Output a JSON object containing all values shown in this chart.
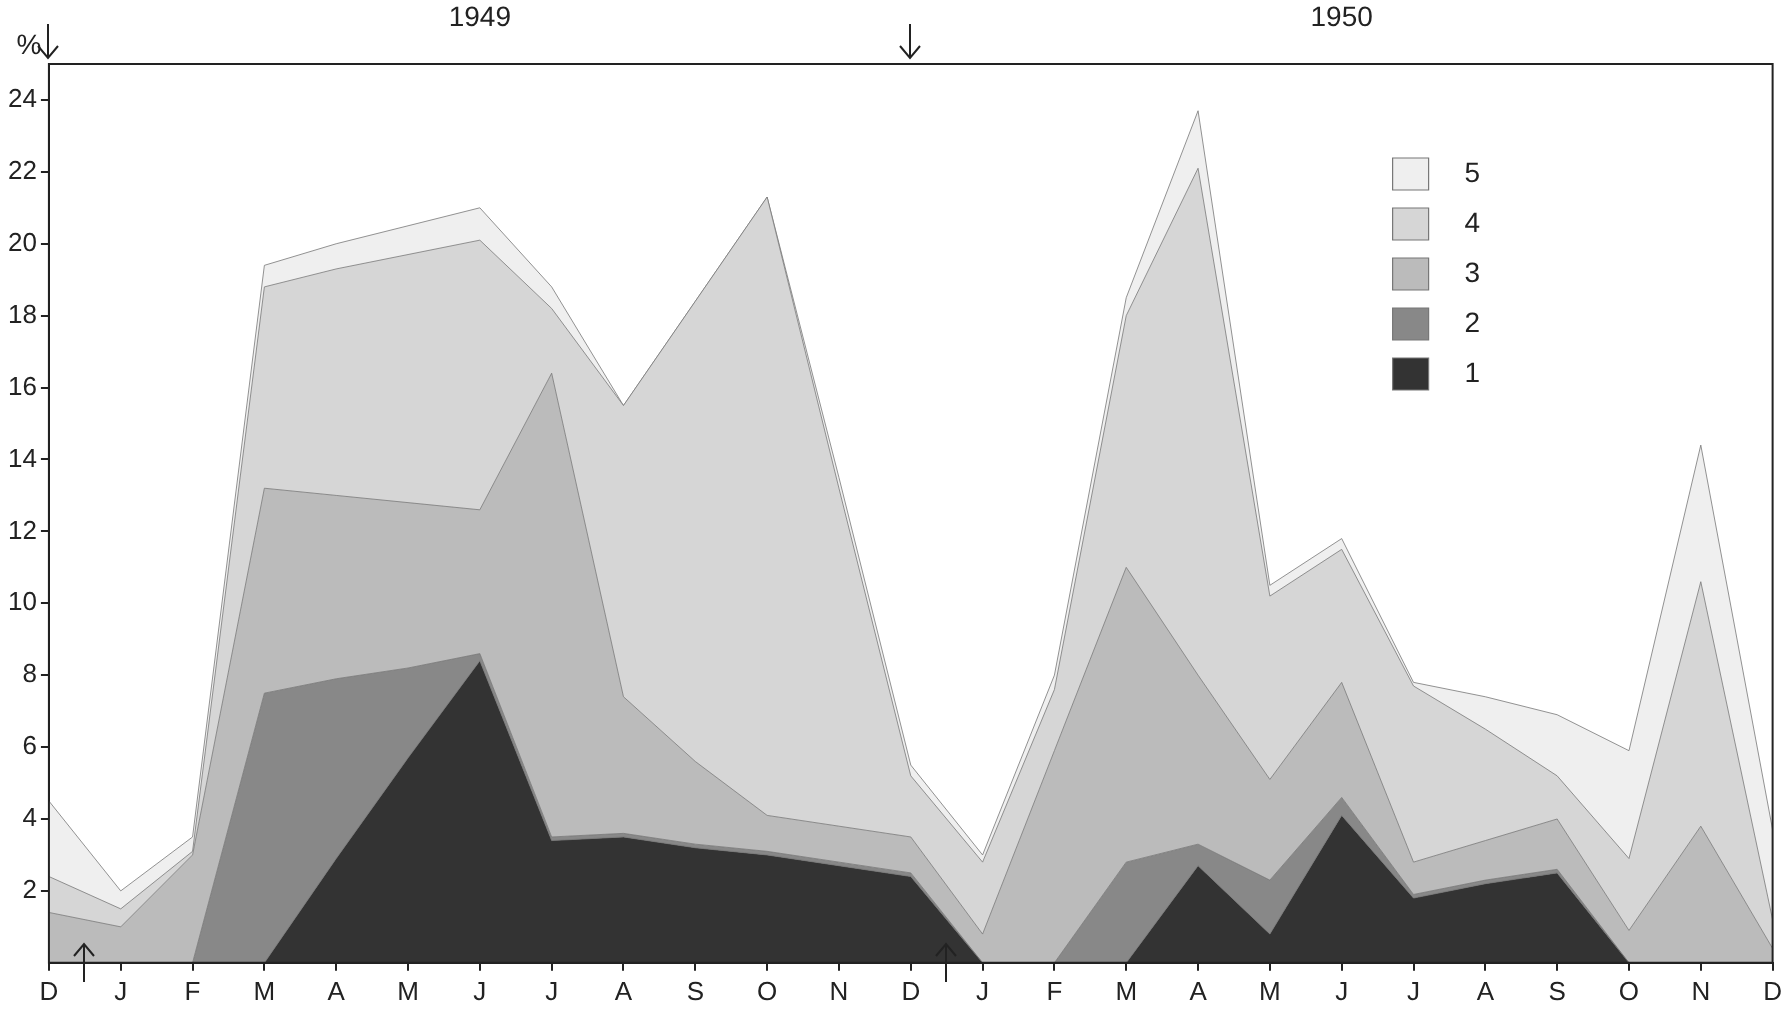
{
  "chart_data": {
    "type": "area",
    "stacked": true,
    "ylabel": "%",
    "annotations": [
      "1949",
      "1950"
    ],
    "categories": [
      "D",
      "J",
      "F",
      "M",
      "A",
      "M",
      "J",
      "J",
      "A",
      "S",
      "O",
      "N",
      "D",
      "J",
      "F",
      "M",
      "A",
      "M",
      "J",
      "J",
      "A",
      "S",
      "O",
      "N",
      "D"
    ],
    "ylim": [
      0,
      25
    ],
    "yticks": [
      2,
      4,
      6,
      8,
      10,
      12,
      14,
      16,
      18,
      20,
      22,
      24
    ],
    "grid": false,
    "legend": "top right",
    "series": [
      {
        "name": "1",
        "color": "#333333",
        "values": [
          0,
          0,
          0,
          0,
          2.9,
          5.7,
          8.4,
          3.4,
          3.5,
          3.2,
          3.0,
          2.7,
          2.4,
          0,
          0,
          0,
          2.7,
          0.8,
          4.1,
          1.8,
          2.2,
          2.5,
          0,
          0,
          0
        ]
      },
      {
        "name": "2",
        "color": "#888888",
        "values": [
          0,
          0,
          0,
          7.5,
          5.0,
          2.5,
          0.2,
          0.1,
          0.1,
          0.1,
          0.1,
          0.1,
          0.1,
          0,
          0,
          2.8,
          0.6,
          1.5,
          0.5,
          0.1,
          0.1,
          0.1,
          0,
          0,
          0
        ]
      },
      {
        "name": "3",
        "color": "#bbbbbb",
        "values": [
          1.4,
          1.0,
          3.0,
          5.7,
          5.1,
          4.6,
          4.0,
          12.9,
          3.8,
          2.3,
          1.0,
          1.0,
          1.0,
          0.8,
          5.9,
          8.2,
          4.7,
          2.8,
          3.2,
          0.9,
          1.1,
          1.4,
          0.9,
          3.8,
          0.4
        ]
      },
      {
        "name": "4",
        "color": "#d6d6d6",
        "values": [
          1.0,
          0.5,
          0.1,
          5.6,
          6.3,
          6.9,
          7.5,
          1.8,
          8.1,
          12.8,
          17.2,
          9.4,
          1.7,
          2.0,
          1.7,
          7.0,
          14.1,
          5.1,
          3.7,
          4.9,
          3.1,
          1.2,
          2.0,
          6.8,
          0.8
        ]
      },
      {
        "name": "5",
        "color": "#efefef",
        "values": [
          2.1,
          0.5,
          0.4,
          0.6,
          0.7,
          0.8,
          0.9,
          0.6,
          0,
          0,
          0,
          0.3,
          0.3,
          0.2,
          0.4,
          0.5,
          1.6,
          0.3,
          0.3,
          0.1,
          0.9,
          1.7,
          3.0,
          3.8,
          2.5
        ]
      }
    ]
  }
}
